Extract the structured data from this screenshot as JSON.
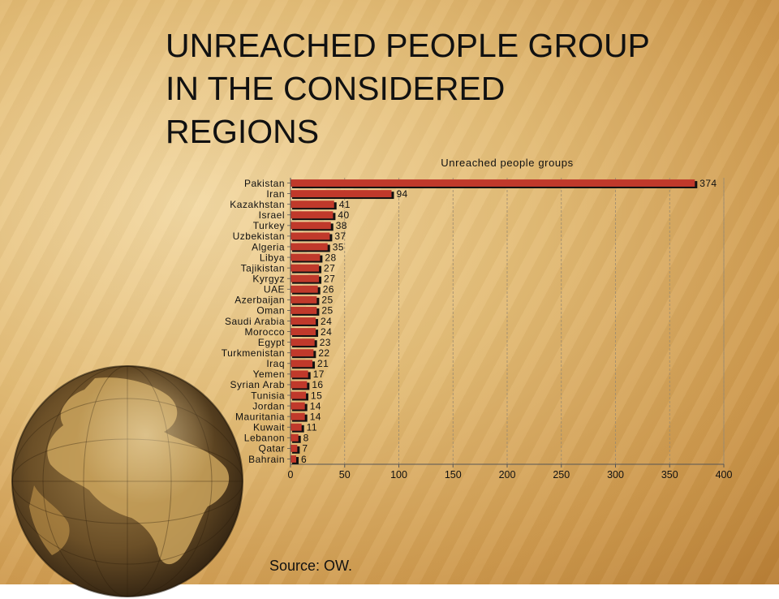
{
  "slide": {
    "title_lines": [
      "UNREACHED PEOPLE GROUP",
      "IN THE CONSIDERED",
      "REGIONS"
    ],
    "source": "Source: OW."
  },
  "chart_data": {
    "type": "bar",
    "orientation": "horizontal",
    "title": "Unreached people groups",
    "categories": [
      "Pakistan",
      "Iran",
      "Kazakhstan",
      "Israel",
      "Turkey",
      "Uzbekistan",
      "Algeria",
      "Libya",
      "Tajikistan",
      "Kyrgyz",
      "UAE",
      "Azerbaijan",
      "Oman",
      "Saudi Arabia",
      "Morocco",
      "Egypt",
      "Turkmenistan",
      "Iraq",
      "Yemen",
      "Syrian Arab",
      "Tunisia",
      "Jordan",
      "Mauritania",
      "Kuwait",
      "Lebanon",
      "Qatar",
      "Bahrain"
    ],
    "values": [
      374,
      94,
      41,
      40,
      38,
      37,
      35,
      28,
      27,
      27,
      26,
      25,
      25,
      24,
      24,
      23,
      22,
      21,
      17,
      16,
      15,
      14,
      14,
      11,
      8,
      7,
      6
    ],
    "xlim": [
      0,
      400
    ],
    "x_ticks": [
      0,
      50,
      100,
      150,
      200,
      250,
      300,
      350,
      400
    ],
    "grid": true,
    "legend": "none",
    "colors": {
      "bar": "#c0392b",
      "bar_shadow": "#111111",
      "grid": "#9a8a70"
    }
  }
}
